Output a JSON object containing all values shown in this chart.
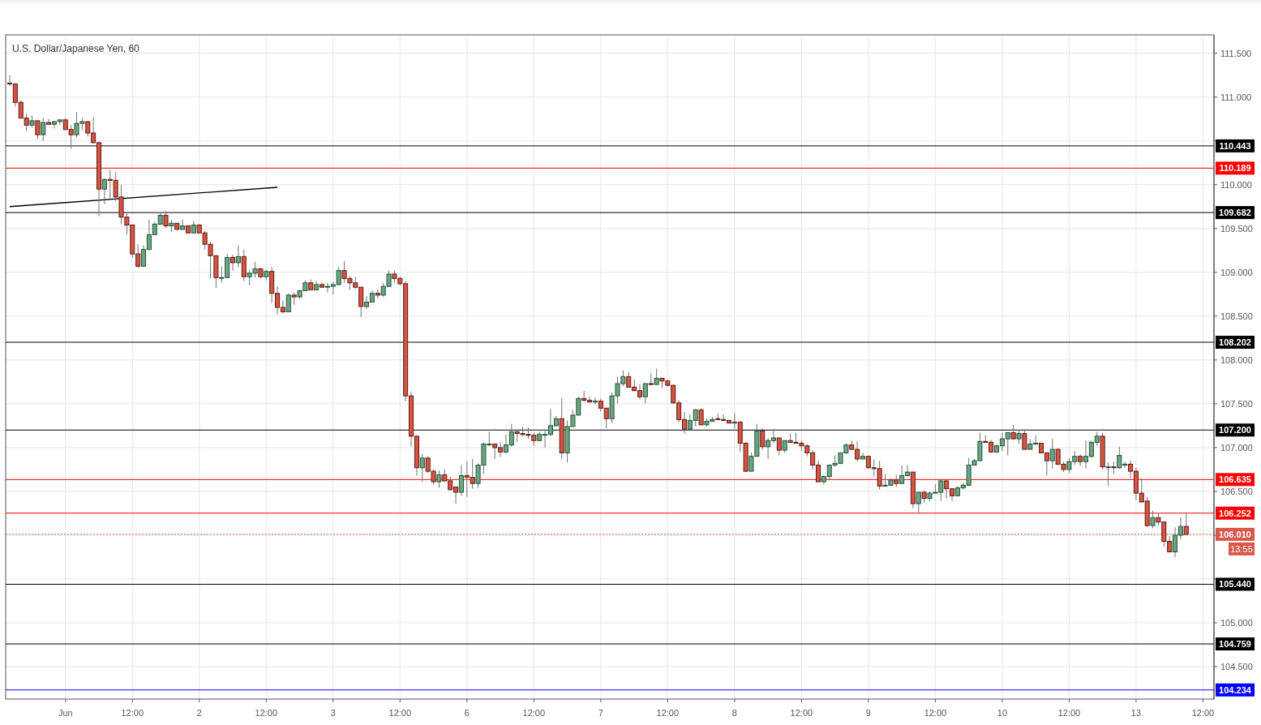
{
  "chart_data": {
    "type": "candlestick",
    "title": "U.S. Dollar/Japanese Yen, 60",
    "categories": [
      null,
      null,
      null,
      null,
      null,
      null,
      null,
      null,
      null,
      null,
      "Jun",
      null,
      null,
      null,
      null,
      null,
      null,
      null,
      null,
      null,
      null,
      null,
      "12:00",
      null,
      null,
      null,
      null,
      null,
      null,
      null,
      null,
      null,
      null,
      null,
      "2",
      null,
      null,
      null,
      null,
      null,
      null,
      null,
      null,
      null,
      null,
      null,
      "12:00",
      null,
      null,
      null,
      null,
      null,
      null,
      null,
      null,
      null,
      null,
      null,
      "3",
      null,
      null,
      null,
      null,
      null,
      null,
      null,
      null,
      null,
      null,
      null,
      "12:00",
      null,
      null,
      null,
      null,
      null,
      null,
      null,
      null,
      null,
      null,
      null,
      "6",
      null,
      null,
      null,
      null,
      null,
      null,
      null,
      null,
      null,
      null,
      null,
      "12:00",
      null,
      null,
      null,
      null,
      null,
      null,
      null,
      null,
      null,
      null,
      null,
      "7",
      null,
      null,
      null,
      null,
      null,
      null,
      null,
      null,
      null,
      null,
      null,
      "12:00",
      null,
      null,
      null,
      null,
      null,
      null,
      null,
      null,
      null,
      null,
      null,
      "8",
      null,
      null,
      null,
      null,
      null,
      null,
      null,
      null,
      null,
      null,
      null,
      "12:00",
      null,
      null,
      null,
      null,
      null,
      null,
      null,
      null,
      null,
      null,
      null,
      "9",
      null,
      null,
      null,
      null,
      null,
      null,
      null,
      null,
      null,
      null,
      null,
      "12:00",
      null,
      null,
      null,
      null,
      null,
      null,
      null,
      null,
      null,
      null,
      null,
      "10",
      null,
      null,
      null,
      null,
      null,
      null,
      null,
      null,
      null,
      null,
      null,
      "12:00",
      null,
      null,
      null,
      null,
      null,
      null,
      null,
      null,
      null,
      null,
      null,
      "13",
      null,
      null,
      null,
      null,
      null,
      null,
      null,
      null,
      null,
      null,
      null,
      "12:00",
      null,
      null
    ],
    "ohlc": [
      [
        111.16,
        111.25,
        111.13,
        111.15
      ],
      [
        111.15,
        111.16,
        110.89,
        110.94
      ],
      [
        110.94,
        110.96,
        110.76,
        110.76
      ],
      [
        110.76,
        110.81,
        110.61,
        110.68
      ],
      [
        110.68,
        110.79,
        110.65,
        110.73
      ],
      [
        110.73,
        110.73,
        110.52,
        110.57
      ],
      [
        110.57,
        110.76,
        110.5,
        110.71
      ],
      [
        110.71,
        110.75,
        110.69,
        110.69
      ],
      [
        110.69,
        110.73,
        110.64,
        110.72
      ],
      [
        110.72,
        110.74,
        110.68,
        110.74
      ],
      [
        110.74,
        110.76,
        110.63,
        110.63
      ],
      [
        110.63,
        110.68,
        110.41,
        110.57
      ],
      [
        110.57,
        110.83,
        110.54,
        110.7
      ],
      [
        110.7,
        110.76,
        110.62,
        110.72
      ],
      [
        110.72,
        110.72,
        110.55,
        110.59
      ],
      [
        110.59,
        110.77,
        110.47,
        110.48
      ],
      [
        110.48,
        110.49,
        109.64,
        109.95
      ],
      [
        109.95,
        110.07,
        109.78,
        110.06
      ],
      [
        110.06,
        110.17,
        109.83,
        110.05
      ],
      [
        110.05,
        110.14,
        109.81,
        109.86
      ],
      [
        109.86,
        110.0,
        109.55,
        109.63
      ],
      [
        109.63,
        109.68,
        109.43,
        109.54
      ],
      [
        109.54,
        109.54,
        109.17,
        109.21
      ],
      [
        109.21,
        109.32,
        109.05,
        109.07
      ],
      [
        109.07,
        109.31,
        109.06,
        109.26
      ],
      [
        109.26,
        109.6,
        109.26,
        109.43
      ],
      [
        109.43,
        109.58,
        109.43,
        109.55
      ],
      [
        109.55,
        109.68,
        109.54,
        109.65
      ],
      [
        109.65,
        109.7,
        109.51,
        109.53
      ],
      [
        109.53,
        109.6,
        109.46,
        109.56
      ],
      [
        109.56,
        109.56,
        109.48,
        109.49
      ],
      [
        109.49,
        109.6,
        109.49,
        109.53
      ],
      [
        109.53,
        109.53,
        109.44,
        109.45
      ],
      [
        109.45,
        109.59,
        109.45,
        109.54
      ],
      [
        109.54,
        109.55,
        109.45,
        109.45
      ],
      [
        109.45,
        109.47,
        109.26,
        109.32
      ],
      [
        109.32,
        109.35,
        108.93,
        109.19
      ],
      [
        109.19,
        109.19,
        108.82,
        108.94
      ],
      [
        108.94,
        109.07,
        108.88,
        108.94
      ],
      [
        108.94,
        109.21,
        108.94,
        109.17
      ],
      [
        109.17,
        109.2,
        109.02,
        109.11
      ],
      [
        109.11,
        109.31,
        109.06,
        109.18
      ],
      [
        109.18,
        109.26,
        108.9,
        108.95
      ],
      [
        108.95,
        109.03,
        108.85,
        108.99
      ],
      [
        108.99,
        109.12,
        108.94,
        109.04
      ],
      [
        109.04,
        109.05,
        108.93,
        108.95
      ],
      [
        108.95,
        109.03,
        108.91,
        109.01
      ],
      [
        109.01,
        109.06,
        108.65,
        108.76
      ],
      [
        108.76,
        108.84,
        108.52,
        108.6
      ],
      [
        108.6,
        108.68,
        108.53,
        108.55
      ],
      [
        108.55,
        108.76,
        108.55,
        108.74
      ],
      [
        108.74,
        108.77,
        108.63,
        108.72
      ],
      [
        108.72,
        108.79,
        108.7,
        108.79
      ],
      [
        108.79,
        108.91,
        108.79,
        108.88
      ],
      [
        108.88,
        108.92,
        108.8,
        108.8
      ],
      [
        108.8,
        108.9,
        108.8,
        108.86
      ],
      [
        108.86,
        108.88,
        108.83,
        108.83
      ],
      [
        108.83,
        108.88,
        108.77,
        108.84
      ],
      [
        108.84,
        108.89,
        108.75,
        108.86
      ],
      [
        108.86,
        109.06,
        108.86,
        109.02
      ],
      [
        109.02,
        109.13,
        108.88,
        108.93
      ],
      [
        108.93,
        108.96,
        108.8,
        108.88
      ],
      [
        108.88,
        108.95,
        108.81,
        108.83
      ],
      [
        108.83,
        108.83,
        108.49,
        108.61
      ],
      [
        108.61,
        108.73,
        108.58,
        108.66
      ],
      [
        108.66,
        108.79,
        108.66,
        108.76
      ],
      [
        108.76,
        108.81,
        108.7,
        108.74
      ],
      [
        108.74,
        108.88,
        108.72,
        108.84
      ],
      [
        108.84,
        109.02,
        108.83,
        108.98
      ],
      [
        108.98,
        109.02,
        108.88,
        108.93
      ],
      [
        108.93,
        108.95,
        108.85,
        108.87
      ],
      [
        108.87,
        108.9,
        107.53,
        107.59
      ],
      [
        107.59,
        107.64,
        107.01,
        107.13
      ],
      [
        107.13,
        107.13,
        106.68,
        106.77
      ],
      [
        106.77,
        106.93,
        106.61,
        106.88
      ],
      [
        106.88,
        106.9,
        106.71,
        106.73
      ],
      [
        106.73,
        106.75,
        106.58,
        106.61
      ],
      [
        106.61,
        106.74,
        106.54,
        106.69
      ],
      [
        106.69,
        106.75,
        106.61,
        106.62
      ],
      [
        106.62,
        106.67,
        106.51,
        106.52
      ],
      [
        106.55,
        106.55,
        106.36,
        106.49
      ],
      [
        106.49,
        106.8,
        106.45,
        106.68
      ],
      [
        106.68,
        106.84,
        106.44,
        106.66
      ],
      [
        106.66,
        106.87,
        106.53,
        106.59
      ],
      [
        106.59,
        106.82,
        106.54,
        106.8
      ],
      [
        106.8,
        107.06,
        106.7,
        107.04
      ],
      [
        107.04,
        107.18,
        107.02,
        107.04
      ],
      [
        107.04,
        107.04,
        106.87,
        107.0
      ],
      [
        107.0,
        107.06,
        106.89,
        106.95
      ],
      [
        106.95,
        107.15,
        106.93,
        107.03
      ],
      [
        107.03,
        107.27,
        107.01,
        107.18
      ],
      [
        107.18,
        107.2,
        107.06,
        107.16
      ],
      [
        107.16,
        107.24,
        107.13,
        107.15
      ],
      [
        107.15,
        107.23,
        107.1,
        107.14
      ],
      [
        107.14,
        107.17,
        107.02,
        107.08
      ],
      [
        107.08,
        107.18,
        107.07,
        107.15
      ],
      [
        107.15,
        107.21,
        107.0,
        107.15
      ],
      [
        107.15,
        107.44,
        107.13,
        107.25
      ],
      [
        107.25,
        107.36,
        107.24,
        107.33
      ],
      [
        107.33,
        107.56,
        106.87,
        106.94
      ],
      [
        106.94,
        107.31,
        106.83,
        107.24
      ],
      [
        107.24,
        107.43,
        107.24,
        107.37
      ],
      [
        107.37,
        107.58,
        107.37,
        107.56
      ],
      [
        107.56,
        107.65,
        107.52,
        107.54
      ],
      [
        107.54,
        107.58,
        107.51,
        107.52
      ],
      [
        107.52,
        107.57,
        107.49,
        107.53
      ],
      [
        107.53,
        107.56,
        107.41,
        107.45
      ],
      [
        107.45,
        107.45,
        107.22,
        107.33
      ],
      [
        107.33,
        107.63,
        107.28,
        107.59
      ],
      [
        107.59,
        107.81,
        107.5,
        107.73
      ],
      [
        107.73,
        107.88,
        107.7,
        107.81
      ],
      [
        107.81,
        107.86,
        107.68,
        107.69
      ],
      [
        107.69,
        107.78,
        107.64,
        107.65
      ],
      [
        107.65,
        107.72,
        107.55,
        107.58
      ],
      [
        107.58,
        107.73,
        107.5,
        107.73
      ],
      [
        107.73,
        107.85,
        107.71,
        107.72
      ],
      [
        107.72,
        107.9,
        107.72,
        107.79
      ],
      [
        107.79,
        107.79,
        107.68,
        107.76
      ],
      [
        107.76,
        107.78,
        107.7,
        107.71
      ],
      [
        107.71,
        107.72,
        107.5,
        107.51
      ],
      [
        107.51,
        107.54,
        107.29,
        107.32
      ],
      [
        107.32,
        107.41,
        107.16,
        107.21
      ],
      [
        107.21,
        107.38,
        107.21,
        107.31
      ],
      [
        107.31,
        107.44,
        107.24,
        107.43
      ],
      [
        107.43,
        107.45,
        107.26,
        107.26
      ],
      [
        107.26,
        107.33,
        107.24,
        107.3
      ],
      [
        107.3,
        107.35,
        107.3,
        107.32
      ],
      [
        107.33,
        107.39,
        107.31,
        107.32
      ],
      [
        107.32,
        107.38,
        107.31,
        107.31
      ],
      [
        107.31,
        107.31,
        107.28,
        107.28
      ],
      [
        107.28,
        107.39,
        107.22,
        107.29
      ],
      [
        107.29,
        107.3,
        106.95,
        107.05
      ],
      [
        107.05,
        107.06,
        106.72,
        106.73
      ],
      [
        106.73,
        106.94,
        106.73,
        106.9
      ],
      [
        106.9,
        107.27,
        106.9,
        107.19
      ],
      [
        107.19,
        107.22,
        106.98,
        107.01
      ],
      [
        107.01,
        107.11,
        106.87,
        107.08
      ],
      [
        107.08,
        107.21,
        107.05,
        107.11
      ],
      [
        107.11,
        107.11,
        106.91,
        106.97
      ],
      [
        106.97,
        107.08,
        106.94,
        107.08
      ],
      [
        107.08,
        107.16,
        107.05,
        107.06
      ],
      [
        107.06,
        107.17,
        107.04,
        107.05
      ],
      [
        107.05,
        107.08,
        106.96,
        107.02
      ],
      [
        107.02,
        107.04,
        106.9,
        106.94
      ],
      [
        106.94,
        106.97,
        106.75,
        106.8
      ],
      [
        106.8,
        106.85,
        106.61,
        106.61
      ],
      [
        106.61,
        106.67,
        106.58,
        106.67
      ],
      [
        106.67,
        106.8,
        106.63,
        106.8
      ],
      [
        106.8,
        106.91,
        106.78,
        106.82
      ],
      [
        106.82,
        106.94,
        106.81,
        106.94
      ],
      [
        106.94,
        107.05,
        106.93,
        107.03
      ],
      [
        107.03,
        107.08,
        106.97,
        106.98
      ],
      [
        106.98,
        107.07,
        106.84,
        106.87
      ],
      [
        106.87,
        106.94,
        106.87,
        106.9
      ],
      [
        106.9,
        106.9,
        106.76,
        106.77
      ],
      [
        106.77,
        106.86,
        106.67,
        106.76
      ],
      [
        106.76,
        106.85,
        106.52,
        106.56
      ],
      [
        106.56,
        106.7,
        106.56,
        106.57
      ],
      [
        106.57,
        106.65,
        106.56,
        106.63
      ],
      [
        106.63,
        106.69,
        106.55,
        106.59
      ],
      [
        106.59,
        106.8,
        106.59,
        106.68
      ],
      [
        106.68,
        106.8,
        106.67,
        106.72
      ],
      [
        106.72,
        106.72,
        106.31,
        106.36
      ],
      [
        106.36,
        106.49,
        106.25,
        106.49
      ],
      [
        106.49,
        106.51,
        106.37,
        106.42
      ],
      [
        106.42,
        106.5,
        106.39,
        106.48
      ],
      [
        106.48,
        106.58,
        106.48,
        106.49
      ],
      [
        106.49,
        106.64,
        106.39,
        106.62
      ],
      [
        106.62,
        106.64,
        106.42,
        106.53
      ],
      [
        106.53,
        106.53,
        106.39,
        106.45
      ],
      [
        106.45,
        106.56,
        106.45,
        106.54
      ],
      [
        106.54,
        106.6,
        106.52,
        106.57
      ],
      [
        106.57,
        106.88,
        106.56,
        106.8
      ],
      [
        106.8,
        106.87,
        106.8,
        106.85
      ],
      [
        106.85,
        107.17,
        106.85,
        107.07
      ],
      [
        107.07,
        107.14,
        107.06,
        107.06
      ],
      [
        107.06,
        107.09,
        106.94,
        106.95
      ],
      [
        106.95,
        107.04,
        106.94,
        107.02
      ],
      [
        107.02,
        107.17,
        106.96,
        107.1
      ],
      [
        107.1,
        107.17,
        106.91,
        107.17
      ],
      [
        107.17,
        107.26,
        107.09,
        107.1
      ],
      [
        107.1,
        107.2,
        107.04,
        107.16
      ],
      [
        107.16,
        107.21,
        106.98,
        106.98
      ],
      [
        106.98,
        107.1,
        106.98,
        107.04
      ],
      [
        107.04,
        107.14,
        107.03,
        107.05
      ],
      [
        107.05,
        107.05,
        106.94,
        106.94
      ],
      [
        106.94,
        106.94,
        106.68,
        106.85
      ],
      [
        106.85,
        107.1,
        106.76,
        106.98
      ],
      [
        106.98,
        106.99,
        106.8,
        106.81
      ],
      [
        106.81,
        106.84,
        106.72,
        106.75
      ],
      [
        106.75,
        106.88,
        106.71,
        106.84
      ],
      [
        106.84,
        106.96,
        106.8,
        106.9
      ],
      [
        106.9,
        106.92,
        106.79,
        106.84
      ],
      [
        106.84,
        107.08,
        106.76,
        106.9
      ],
      [
        106.9,
        107.08,
        106.88,
        107.06
      ],
      [
        107.06,
        107.18,
        107.02,
        107.13
      ],
      [
        107.13,
        107.17,
        106.75,
        106.78
      ],
      [
        106.78,
        106.83,
        106.56,
        106.78
      ],
      [
        106.78,
        106.84,
        106.7,
        106.77
      ],
      [
        106.77,
        107.01,
        106.76,
        106.91
      ],
      [
        106.8,
        106.84,
        106.77,
        106.81
      ],
      [
        106.81,
        106.85,
        106.65,
        106.73
      ],
      [
        106.73,
        106.77,
        106.4,
        106.48
      ],
      [
        106.48,
        106.65,
        106.37,
        106.38
      ],
      [
        106.39,
        106.44,
        106.09,
        106.11
      ],
      [
        106.11,
        106.28,
        106.08,
        106.2
      ],
      [
        106.2,
        106.25,
        106.11,
        106.15
      ],
      [
        106.15,
        106.16,
        105.87,
        105.93
      ],
      [
        105.93,
        105.99,
        105.81,
        105.81
      ],
      [
        105.81,
        106.09,
        105.75,
        106.0
      ],
      [
        106.0,
        106.2,
        105.95,
        106.1
      ],
      [
        106.1,
        106.26,
        106.0,
        106.01
      ],
      null,
      null,
      null,
      null,
      null
    ],
    "series": [
      {
        "type": "line",
        "color": "#000000",
        "values": [
          109.75,
          null,
          null,
          null,
          null,
          null,
          null,
          null,
          null,
          null,
          null,
          null,
          null,
          null,
          null,
          null,
          null,
          null,
          null,
          null,
          null,
          null,
          null,
          null,
          null,
          null,
          null,
          null,
          null,
          null,
          null,
          null,
          null,
          null,
          null,
          null,
          null,
          null,
          null,
          null,
          null,
          null,
          null,
          null,
          null,
          null,
          null,
          null,
          109.97,
          null,
          null,
          null,
          null,
          null,
          null,
          null,
          null,
          null,
          null,
          null,
          null,
          null,
          null,
          null,
          null,
          null,
          null,
          null,
          null,
          null,
          null,
          null,
          null,
          null,
          null,
          null,
          null,
          null,
          null,
          null,
          null,
          null,
          null,
          null,
          null,
          null,
          null,
          null,
          null,
          null,
          null,
          null,
          null,
          null,
          null,
          null,
          null,
          null,
          null,
          null,
          null,
          null,
          null,
          null,
          null,
          null,
          null,
          null,
          null,
          null,
          null,
          null,
          null,
          null,
          null,
          null,
          null,
          null,
          null,
          null,
          null,
          null,
          null,
          null,
          null,
          null,
          null,
          null,
          null,
          null,
          null,
          null,
          null,
          null,
          null,
          null,
          null,
          null,
          null,
          null,
          null,
          null,
          null,
          null,
          null,
          null,
          null,
          null,
          null,
          null,
          null,
          null,
          null,
          null,
          null,
          null,
          null,
          null,
          null,
          null,
          null,
          null,
          null,
          null,
          null,
          null,
          null,
          null,
          null,
          null,
          null,
          null,
          null,
          null,
          null,
          null,
          null,
          null,
          null,
          null,
          null,
          null,
          null,
          null,
          null,
          null,
          null,
          null,
          null,
          null,
          null,
          null,
          null,
          null,
          null,
          null,
          null,
          null,
          null,
          null,
          null,
          null,
          null,
          null,
          null,
          null,
          null,
          null,
          null,
          null,
          null,
          null,
          null,
          null,
          null,
          null,
          null
        ]
      }
    ],
    "ylim": [
      104.13,
      111.71
    ],
    "yticks": [
      {
        "value": 104.5,
        "label": "104.500"
      },
      {
        "value": 105,
        "label": "105.000"
      },
      {
        "value": 105.5,
        "label": null
      },
      {
        "value": 106,
        "label": null
      },
      {
        "value": 106.5,
        "label": "106.500"
      },
      {
        "value": 107,
        "label": "107.000"
      },
      {
        "value": 107.5,
        "label": "107.500"
      },
      {
        "value": 108,
        "label": "108.000"
      },
      {
        "value": 108.5,
        "label": "108.500"
      },
      {
        "value": 109,
        "label": "109.000"
      },
      {
        "value": 109.5,
        "label": "109.500"
      },
      {
        "value": 110,
        "label": "110.000"
      },
      {
        "value": 110.5,
        "label": null
      },
      {
        "value": 111,
        "label": "111.000"
      },
      {
        "value": 111.5,
        "label": "111.500"
      }
    ],
    "ref_lines": [
      {
        "axis": "y",
        "value": 110.443,
        "label": "110.443",
        "color": "#000000"
      },
      {
        "axis": "y",
        "value": 110.189,
        "label": "110.189",
        "color": "#ff0000"
      },
      {
        "axis": "y",
        "value": 109.682,
        "label": "109.682",
        "color": "#000000"
      },
      {
        "axis": "y",
        "value": 108.202,
        "label": "108.202",
        "color": "#000000"
      },
      {
        "axis": "y",
        "value": 107.2,
        "label": "107.200",
        "color": "#000000"
      },
      {
        "axis": "y",
        "value": 106.635,
        "label": "106.635",
        "color": "#ff0000"
      },
      {
        "axis": "y",
        "value": 106.252,
        "label": "106.252",
        "color": "#ff0000"
      },
      {
        "axis": "y",
        "value": 106.01,
        "label": "106.010",
        "color": "#d9584a",
        "line_style": "dotted"
      },
      {
        "axis": "y",
        "value": 105.44,
        "label": "105.440",
        "color": "#000000"
      },
      {
        "axis": "y",
        "value": 104.759,
        "label": "104.759",
        "color": "#000000"
      },
      {
        "axis": "y",
        "value": 104.234,
        "label": "104.234",
        "color": "#0000ff"
      }
    ],
    "annotations": [
      "13:55"
    ],
    "grid": true
  }
}
